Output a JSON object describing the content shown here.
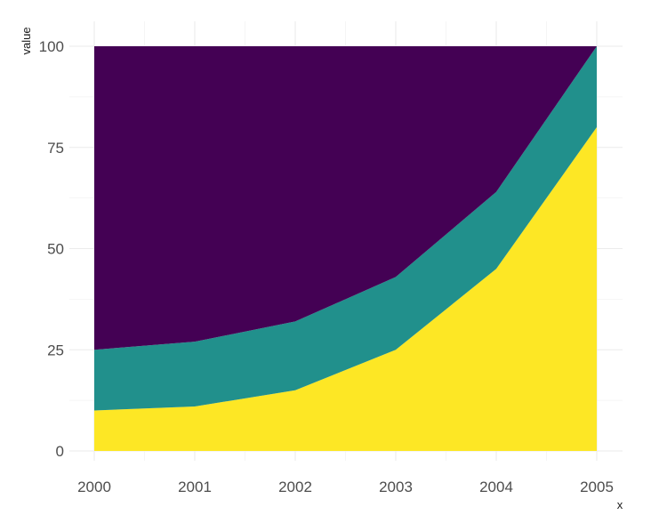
{
  "chart_data": {
    "type": "area",
    "stacking": "percent",
    "xlabel": "x",
    "ylabel": "value",
    "x": [
      2000,
      2001,
      2002,
      2003,
      2004,
      2005
    ],
    "x_ticks": [
      "2000",
      "2001",
      "2002",
      "2003",
      "2004",
      "2005"
    ],
    "y_ticks": [
      "0",
      "25",
      "50",
      "75",
      "100"
    ],
    "ylim": [
      0,
      100
    ],
    "grid": true,
    "legend": "none",
    "series": [
      {
        "color": "#FDE725",
        "values": [
          10,
          11,
          15,
          25,
          45,
          80
        ]
      },
      {
        "color": "#21908C",
        "values": [
          15,
          16,
          17,
          18,
          19,
          20
        ]
      },
      {
        "color": "#440154",
        "values": [
          75,
          73,
          68,
          57,
          36,
          0
        ]
      }
    ]
  }
}
